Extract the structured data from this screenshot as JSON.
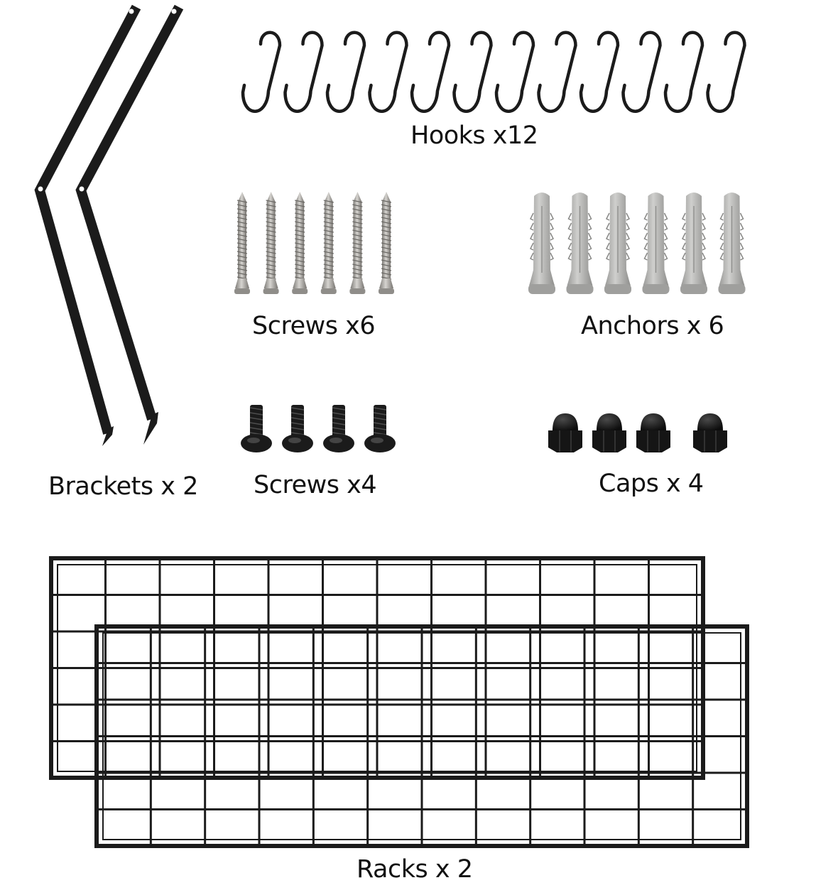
{
  "labels": {
    "hooks": "Hooks  x12",
    "screws_long": "Screws  x6",
    "anchors": "Anchors x 6",
    "brackets": "Brackets x 2",
    "screws_short": "Screws   x4",
    "caps": "Caps x 4",
    "racks": "Racks x 2"
  },
  "counts": {
    "hooks": 12,
    "screws_long": 6,
    "anchors": 6,
    "brackets": 2,
    "screws_short": 4,
    "caps": 4,
    "racks": 2
  },
  "colors": {
    "metal_black": "#1b1b1b",
    "screw_steel": "#a9a7a3",
    "anchor_gray": "#b3b3b1",
    "background": "#ffffff"
  },
  "icons": {
    "hook": "s-hook-icon",
    "screw_long": "wood-screw-icon",
    "anchor": "wall-anchor-icon",
    "bracket": "bracket-icon",
    "screw_short": "machine-screw-icon",
    "cap": "cap-nut-icon",
    "rack": "grid-rack-icon"
  }
}
